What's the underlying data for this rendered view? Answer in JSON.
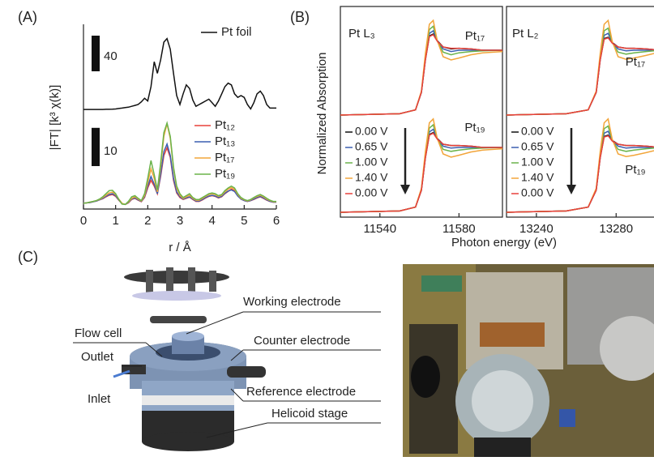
{
  "panel_labels": [
    "(A)",
    "(B)",
    "(C)"
  ],
  "chart_data": [
    {
      "type": "line",
      "ylabel": "|FT| [k³ χ(k)]",
      "legend": "upper right",
      "scale_bar": 40,
      "x": [
        0,
        0.1,
        0.2,
        0.3,
        0.4,
        0.5,
        0.6,
        0.7,
        0.8,
        0.9,
        1,
        1.1,
        1.2,
        1.3,
        1.4,
        1.5,
        1.6,
        1.7,
        1.8,
        1.9,
        2,
        2.1,
        2.2,
        2.3,
        2.4,
        2.5,
        2.6,
        2.7,
        2.8,
        2.9,
        3,
        3.1,
        3.2,
        3.3,
        3.4,
        3.5,
        3.6,
        3.7,
        3.8,
        3.9,
        4,
        4.1,
        4.2,
        4.3,
        4.4,
        4.5,
        4.6,
        4.7,
        4.8,
        4.9,
        5,
        5.1,
        5.2,
        5.3,
        5.4,
        5.5,
        5.6,
        5.7,
        5.8,
        5.9,
        6
      ],
      "xlim": [
        0,
        6
      ],
      "ylim": [
        0,
        100
      ],
      "series": [
        {
          "name": "Pt foil",
          "color": "#111111",
          "values": [
            4.5,
            4.5,
            4.5,
            4.5,
            4.5,
            4.5,
            4.5,
            4.6,
            4.6,
            4.7,
            5,
            5.5,
            6,
            6.5,
            7,
            8,
            9,
            10,
            13,
            17,
            14,
            30,
            58,
            45,
            60,
            80,
            84,
            72,
            45,
            20,
            10,
            22,
            32,
            28,
            15,
            8,
            10,
            12,
            14,
            16,
            12,
            8,
            14,
            22,
            30,
            34,
            32,
            22,
            18,
            20,
            18,
            10,
            5,
            12,
            22,
            25,
            20,
            10,
            6,
            6,
            6
          ]
        }
      ]
    },
    {
      "type": "line",
      "xlabel": "r / Å",
      "legend": "upper right",
      "scale_bar": 10,
      "x": [
        0,
        0.1,
        0.2,
        0.3,
        0.4,
        0.5,
        0.6,
        0.7,
        0.8,
        0.9,
        1,
        1.1,
        1.2,
        1.3,
        1.4,
        1.5,
        1.6,
        1.7,
        1.8,
        1.9,
        2,
        2.1,
        2.2,
        2.3,
        2.4,
        2.5,
        2.6,
        2.7,
        2.8,
        2.9,
        3,
        3.1,
        3.2,
        3.3,
        3.4,
        3.5,
        3.6,
        3.7,
        3.8,
        3.9,
        4,
        4.1,
        4.2,
        4.3,
        4.4,
        4.5,
        4.6,
        4.7,
        4.8,
        4.9,
        5,
        5.1,
        5.2,
        5.3,
        5.4,
        5.5,
        5.6,
        5.7,
        5.8,
        5.9,
        6
      ],
      "xlim": [
        0,
        6
      ],
      "ylim": [
        0,
        25
      ],
      "xticks": [
        0,
        1,
        2,
        3,
        4,
        5,
        6
      ],
      "series": [
        {
          "name": "Pt₁₂",
          "color": "#e8403a",
          "values": [
            1.5,
            1.6,
            1.7,
            1.9,
            2.1,
            2.4,
            2.7,
            3.2,
            3.6,
            3.8,
            3.3,
            2.3,
            1.4,
            1.2,
            1.6,
            2.5,
            2.8,
            2.3,
            1.9,
            3,
            5.5,
            7.5,
            6,
            4,
            8.5,
            14,
            16,
            13.5,
            7.5,
            4.2,
            3,
            2.5,
            2.8,
            3.1,
            2.5,
            2,
            2,
            2.4,
            2.9,
            3.3,
            3.5,
            3.3,
            2.9,
            3.2,
            4,
            4.6,
            5.2,
            4.8,
            3.5,
            2.6,
            2.2,
            2,
            2.2,
            2.5,
            2.9,
            3.2,
            2.8,
            2.3,
            2,
            1.8,
            1.8
          ]
        },
        {
          "name": "Pt₁₃",
          "color": "#3a5fb0",
          "values": [
            1.5,
            1.6,
            1.7,
            1.9,
            2.1,
            2.4,
            2.8,
            3.3,
            3.8,
            4,
            3.5,
            2.4,
            1.4,
            1.2,
            1.7,
            2.6,
            2.9,
            2.4,
            2,
            3.2,
            6,
            8.5,
            6.5,
            4,
            9,
            15,
            17,
            14,
            8,
            4.5,
            3.2,
            2.6,
            2.9,
            3.2,
            2.6,
            2.1,
            2.1,
            2.5,
            3,
            3.4,
            3.6,
            3.4,
            3,
            3.3,
            4.1,
            4.7,
            5,
            4.6,
            3.4,
            2.6,
            2.2,
            2,
            2.2,
            2.6,
            3,
            3.3,
            2.9,
            2.4,
            2,
            1.8,
            1.8
          ]
        },
        {
          "name": "Pt₁₇",
          "color": "#f2a53a",
          "values": [
            1.5,
            1.6,
            1.8,
            2,
            2.2,
            2.5,
            3,
            3.6,
            4.2,
            4.4,
            3.8,
            2.6,
            1.5,
            1.2,
            1.8,
            2.8,
            3.2,
            2.6,
            2.1,
            3.5,
            7,
            10.5,
            8,
            4.5,
            11,
            19,
            22.3,
            18.5,
            10.5,
            5.5,
            3.6,
            2.8,
            3.2,
            3.6,
            2.8,
            2.3,
            2.3,
            2.8,
            3.3,
            3.8,
            4,
            3.8,
            3.3,
            3.6,
            4.5,
            5.2,
            5.6,
            5.2,
            3.8,
            2.8,
            2.4,
            2.1,
            2.4,
            2.9,
            3.3,
            3.6,
            3.2,
            2.6,
            2.2,
            1.9,
            1.9
          ]
        },
        {
          "name": "Pt₁₉",
          "color": "#6ab34a",
          "values": [
            1.5,
            1.6,
            1.8,
            2,
            2.2,
            2.6,
            3.2,
            4,
            4.8,
            4.9,
            4,
            2.5,
            1.3,
            1.2,
            2,
            3.2,
            3.5,
            2.8,
            2.2,
            4,
            8,
            12.7,
            9,
            5,
            12,
            20,
            22.5,
            19,
            11,
            6,
            4,
            3,
            3.5,
            4,
            3,
            2.5,
            2.5,
            3,
            3.5,
            4,
            4.2,
            4,
            3.5,
            3.8,
            4.8,
            5.5,
            6,
            5.5,
            4,
            3,
            2.5,
            2.2,
            2.5,
            3,
            3.5,
            3.8,
            3.4,
            2.8,
            2.3,
            2,
            2
          ]
        }
      ]
    },
    {
      "type": "line",
      "title": "Pt L₃",
      "annotation": "Pt₁₇",
      "ylabel": "Normalized Absorption",
      "x": [
        11520,
        11550,
        11558,
        11561,
        11563,
        11565,
        11567,
        11569,
        11572,
        11576,
        11580,
        11586,
        11592,
        11602
      ],
      "xlim": [
        11520,
        11602
      ],
      "ylim": [
        0,
        1.65
      ],
      "series": [
        {
          "color": "#111111",
          "values": [
            0,
            0.02,
            0.08,
            0.35,
            0.85,
            1.22,
            1.25,
            1.15,
            1.05,
            1.02,
            1.03,
            1.02,
            1,
            1
          ]
        },
        {
          "color": "#3a5fb0",
          "values": [
            0,
            0.02,
            0.08,
            0.35,
            0.87,
            1.26,
            1.3,
            1.15,
            1.02,
            0.98,
            1,
            1,
            1,
            1
          ]
        },
        {
          "color": "#6ab34a",
          "values": [
            0,
            0.02,
            0.08,
            0.36,
            0.9,
            1.32,
            1.37,
            1.15,
            0.97,
            0.93,
            0.96,
            0.98,
            0.99,
            1
          ]
        },
        {
          "color": "#f2a53a",
          "values": [
            0,
            0.02,
            0.08,
            0.37,
            0.95,
            1.4,
            1.46,
            1.15,
            0.9,
            0.85,
            0.88,
            0.93,
            0.96,
            0.98
          ]
        },
        {
          "color": "#e8403a",
          "values": [
            0,
            0.02,
            0.08,
            0.35,
            0.85,
            1.21,
            1.24,
            1.14,
            1.05,
            1.03,
            1.03,
            1.02,
            1,
            1
          ]
        }
      ]
    },
    {
      "type": "line",
      "annotation": "Pt₁₉",
      "xlabel": "Photon energy (eV)",
      "legend": "lower left",
      "x": [
        11520,
        11550,
        11558,
        11561,
        11563,
        11565,
        11567,
        11569,
        11572,
        11576,
        11580,
        11586,
        11592,
        11602
      ],
      "xlim": [
        11520,
        11602
      ],
      "ylim": [
        0,
        1.65
      ],
      "xticks": [
        11540,
        11580
      ],
      "series": [
        {
          "name": "0.00 V",
          "color": "#111111",
          "values": [
            0,
            0.02,
            0.08,
            0.34,
            0.84,
            1.2,
            1.23,
            1.14,
            1.05,
            1.03,
            1.03,
            1.02,
            1,
            1
          ]
        },
        {
          "name": "0.65 V",
          "color": "#3a5fb0",
          "values": [
            0,
            0.02,
            0.08,
            0.35,
            0.86,
            1.24,
            1.28,
            1.14,
            1.02,
            0.99,
            1,
            1,
            1,
            1
          ]
        },
        {
          "name": "1.00 V",
          "color": "#6ab34a",
          "values": [
            0,
            0.02,
            0.08,
            0.36,
            0.89,
            1.3,
            1.35,
            1.14,
            0.97,
            0.94,
            0.96,
            0.98,
            0.99,
            1
          ]
        },
        {
          "name": "1.40 V",
          "color": "#f2a53a",
          "values": [
            0,
            0.02,
            0.08,
            0.37,
            0.94,
            1.38,
            1.44,
            1.14,
            0.9,
            0.85,
            0.88,
            0.93,
            0.96,
            0.98
          ]
        },
        {
          "name": "0.00 V",
          "color": "#e8403a",
          "values": [
            0,
            0.02,
            0.08,
            0.34,
            0.84,
            1.19,
            1.22,
            1.13,
            1.05,
            1.03,
            1.03,
            1.02,
            1,
            1
          ]
        }
      ]
    },
    {
      "type": "line",
      "title": "Pt L₂",
      "annotation": "Pt₁₇",
      "x": [
        13225,
        13255,
        13266,
        13270,
        13272,
        13274,
        13276,
        13278,
        13281,
        13285,
        13289,
        13295,
        13299
      ],
      "xlim": [
        13225,
        13299
      ],
      "ylim": [
        0,
        1.65
      ],
      "series": [
        {
          "color": "#111111",
          "values": [
            0,
            0.02,
            0.08,
            0.35,
            0.85,
            1.18,
            1.2,
            1.12,
            1.05,
            1.03,
            1.03,
            1.02,
            1.01
          ]
        },
        {
          "color": "#3a5fb0",
          "values": [
            0,
            0.02,
            0.08,
            0.35,
            0.87,
            1.23,
            1.26,
            1.12,
            1.02,
            0.99,
            1,
            1,
            1
          ]
        },
        {
          "color": "#6ab34a",
          "values": [
            0,
            0.02,
            0.08,
            0.36,
            0.9,
            1.3,
            1.34,
            1.12,
            0.97,
            0.94,
            0.96,
            0.98,
            0.99
          ]
        },
        {
          "color": "#f2a53a",
          "values": [
            0,
            0.02,
            0.08,
            0.37,
            0.95,
            1.4,
            1.46,
            1.14,
            0.9,
            0.86,
            0.88,
            0.92,
            0.95
          ]
        },
        {
          "color": "#e8403a",
          "values": [
            0,
            0.02,
            0.08,
            0.35,
            0.85,
            1.17,
            1.19,
            1.11,
            1.05,
            1.03,
            1.03,
            1.02,
            1.01
          ]
        }
      ]
    },
    {
      "type": "line",
      "annotation": "Pt₁₉",
      "legend": "lower left",
      "x": [
        13225,
        13255,
        13266,
        13270,
        13272,
        13274,
        13276,
        13278,
        13281,
        13285,
        13289,
        13295,
        13299
      ],
      "xlim": [
        13225,
        13299
      ],
      "ylim": [
        0,
        1.65
      ],
      "xticks": [
        13240,
        13280
      ],
      "series": [
        {
          "name": "0.00 V",
          "color": "#111111",
          "values": [
            0,
            0.02,
            0.08,
            0.34,
            0.84,
            1.17,
            1.19,
            1.11,
            1.05,
            1.03,
            1.03,
            1.02,
            1.01
          ]
        },
        {
          "name": "0.65 V",
          "color": "#3a5fb0",
          "values": [
            0,
            0.02,
            0.08,
            0.35,
            0.86,
            1.22,
            1.25,
            1.11,
            1.02,
            0.99,
            1,
            1,
            1
          ]
        },
        {
          "name": "1.00 V",
          "color": "#6ab34a",
          "values": [
            0,
            0.02,
            0.08,
            0.36,
            0.89,
            1.29,
            1.33,
            1.11,
            0.97,
            0.94,
            0.96,
            0.98,
            0.99
          ]
        },
        {
          "name": "1.40 V",
          "color": "#f2a53a",
          "values": [
            0,
            0.02,
            0.08,
            0.37,
            0.94,
            1.38,
            1.44,
            1.13,
            0.9,
            0.86,
            0.88,
            0.92,
            0.95
          ]
        },
        {
          "name": "0.00 V",
          "color": "#e8403a",
          "values": [
            0,
            0.02,
            0.08,
            0.34,
            0.84,
            1.16,
            1.18,
            1.1,
            1.05,
            1.03,
            1.03,
            1.02,
            1.01
          ]
        }
      ]
    }
  ],
  "diagram": {
    "labels": [
      "Working electrode",
      "Flow cell",
      "Counter electrode",
      "Outlet",
      "Reference electrode",
      "Inlet",
      "Helicoid stage"
    ]
  }
}
